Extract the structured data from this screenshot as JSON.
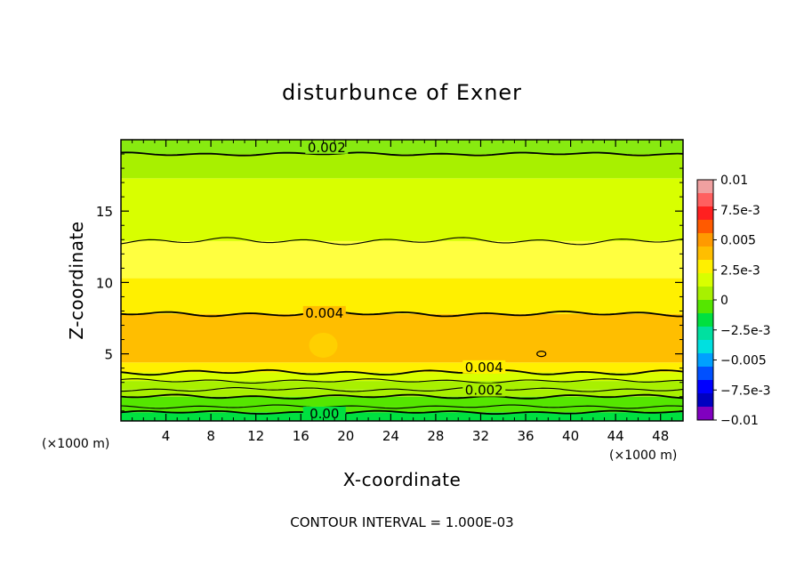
{
  "chart_data": {
    "type": "heatmap",
    "title": "disturbunce of Exner",
    "xlabel": "X-coordinate",
    "ylabel": "Z-coordinate",
    "x_unit": "(×1000 m)",
    "y_unit": "(×1000 m)",
    "xlim": [
      0,
      50
    ],
    "ylim": [
      0.3,
      20
    ],
    "x_ticks": [
      "4",
      "8",
      "12",
      "16",
      "20",
      "24",
      "28",
      "32",
      "36",
      "40",
      "44",
      "48"
    ],
    "y_ticks": [
      "5",
      "10",
      "15"
    ],
    "x_tick_values": [
      4,
      8,
      12,
      16,
      20,
      24,
      28,
      32,
      36,
      40,
      44,
      48
    ],
    "y_tick_values": [
      5,
      10,
      15
    ],
    "footer": "CONTOUR INTERVAL = 1.000E-03",
    "colorbar": {
      "min": -0.01,
      "max": 0.01,
      "labels": [
        "0.01",
        "7.5e-3",
        "0.005",
        "2.5e-3",
        "0",
        "−2.5e-3",
        "−0.005",
        "−7.5e-3",
        "−0.01"
      ],
      "label_values": [
        0.01,
        0.0075,
        0.005,
        0.0025,
        0,
        -0.0025,
        -0.005,
        -0.0075,
        -0.01
      ],
      "colors": [
        "#f0a0a0",
        "#ff6060",
        "#ff2020",
        "#ff5a00",
        "#ff9a00",
        "#ffbe00",
        "#fff000",
        "#d8ff00",
        "#a8f000",
        "#55e600",
        "#00e040",
        "#00e0a0",
        "#00e0e0",
        "#00a0ff",
        "#0050ff",
        "#0000ff",
        "#0000c0",
        "#8000c0"
      ]
    },
    "levels": [
      {
        "z_from": 0.3,
        "z_to": 0.9,
        "value": 0.0,
        "color": "#00e040"
      },
      {
        "z_from": 0.9,
        "z_to": 1.3,
        "value": 0.0005,
        "color": "#55e600"
      },
      {
        "z_from": 1.3,
        "z_to": 2.0,
        "value": 0.0015,
        "color": "#55e600"
      },
      {
        "z_from": 2.0,
        "z_to": 2.5,
        "value": 0.002,
        "color": "#a8f000"
      },
      {
        "z_from": 2.5,
        "z_to": 3.1,
        "value": 0.0025,
        "color": "#a8f000"
      },
      {
        "z_from": 3.1,
        "z_to": 3.7,
        "value": 0.003,
        "color": "#d8ff00"
      },
      {
        "z_from": 3.7,
        "z_to": 4.4,
        "value": 0.0045,
        "color": "#fff000"
      },
      {
        "z_from": 4.4,
        "z_to": 7.8,
        "value": 0.005,
        "color": "#ffbe00"
      },
      {
        "z_from": 7.8,
        "z_to": 10.3,
        "value": 0.0045,
        "color": "#fff000"
      },
      {
        "z_from": 10.3,
        "z_to": 12.9,
        "value": 0.0035,
        "color": "#ffff40"
      },
      {
        "z_from": 12.9,
        "z_to": 17.3,
        "value": 0.003,
        "color": "#d8ff00"
      },
      {
        "z_from": 17.3,
        "z_to": 19.0,
        "value": 0.002,
        "color": "#a8f000"
      },
      {
        "z_from": 19.0,
        "z_to": 20.0,
        "value": 0.0015,
        "color": "#88ea10"
      }
    ],
    "contour_lines": [
      {
        "z": 0.9,
        "amp": 0.12,
        "label": "0.00",
        "label_x": 18.1,
        "label_z": 0.55
      },
      {
        "z": 1.3,
        "amp": 0.12,
        "label": "",
        "label_x": 0,
        "label_z": 0
      },
      {
        "z": 2.0,
        "amp": 0.15,
        "label": "0.002",
        "label_x": 32.3,
        "label_z": 2.2
      },
      {
        "z": 2.5,
        "amp": 0.15,
        "label": "",
        "label_x": 0,
        "label_z": 0
      },
      {
        "z": 3.1,
        "amp": 0.15,
        "label": "",
        "label_x": 0,
        "label_z": 0
      },
      {
        "z": 3.7,
        "amp": 0.18,
        "label": "0.004",
        "label_x": 32.3,
        "label_z": 3.8
      },
      {
        "z": 7.8,
        "amp": 0.18,
        "label": "0.004",
        "label_x": 18.1,
        "label_z": 7.6
      },
      {
        "z": 12.9,
        "amp": 0.25,
        "label": "",
        "label_x": 0,
        "label_z": 0
      },
      {
        "z": 19.0,
        "amp": 0.12,
        "label": "0.002",
        "label_x": 18.3,
        "label_z": 19.2
      }
    ]
  }
}
